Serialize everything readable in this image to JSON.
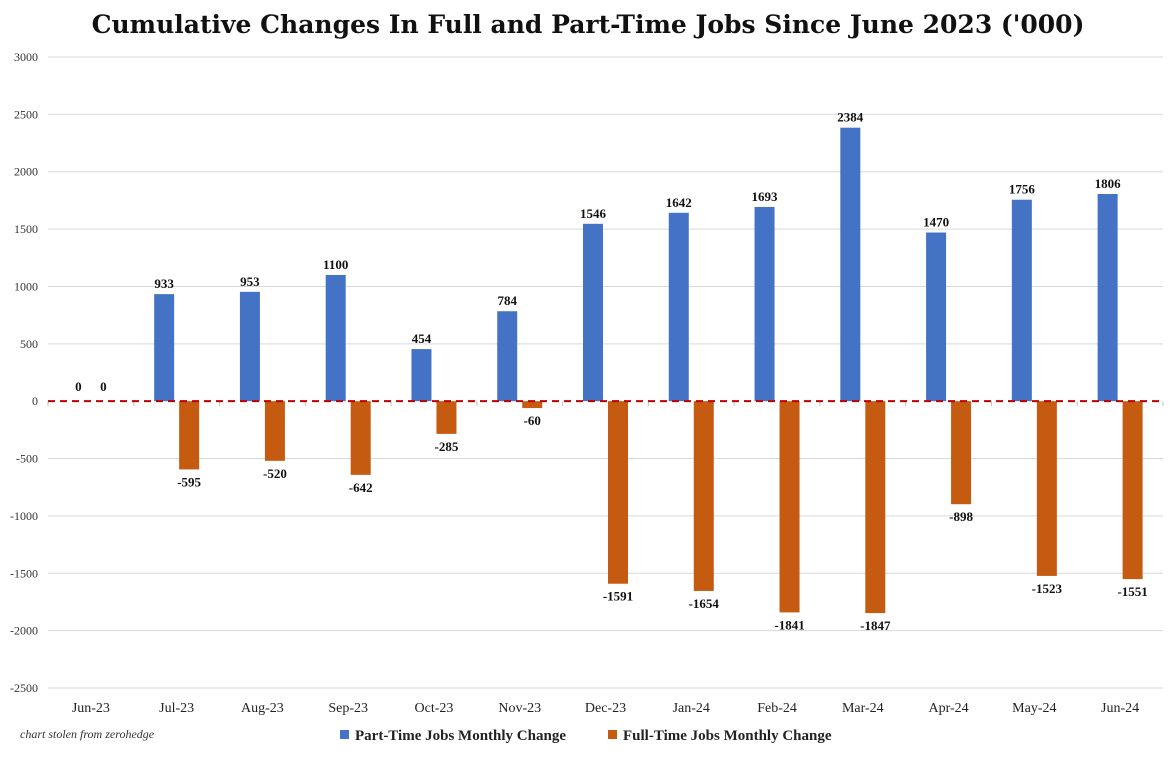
{
  "chart_data": {
    "type": "bar",
    "title": "Cumulative Changes In Full and Part-Time Jobs Since June 2023 ('000)",
    "categories": [
      "Jun-23",
      "Jul-23",
      "Aug-23",
      "Sep-23",
      "Oct-23",
      "Nov-23",
      "Dec-23",
      "Jan-24",
      "Feb-24",
      "Mar-24",
      "Apr-24",
      "May-24",
      "Jun-24"
    ],
    "series": [
      {
        "name": "Part-Time Jobs Monthly Change",
        "color": "#4472C4",
        "values": [
          0,
          933,
          953,
          1100,
          454,
          784,
          1546,
          1642,
          1693,
          2384,
          1470,
          1756,
          1806
        ]
      },
      {
        "name": "Full-Time Jobs Monthly Change",
        "color": "#C55A11",
        "values": [
          0,
          -595,
          -520,
          -642,
          -285,
          -60,
          -1591,
          -1654,
          -1841,
          -1847,
          -898,
          -1523,
          -1551
        ]
      }
    ],
    "ylim": [
      -2500,
      3000
    ],
    "yticks": [
      -2500,
      -2000,
      -1500,
      -1000,
      -500,
      0,
      500,
      1000,
      1500,
      2000,
      2500,
      3000
    ],
    "zero_line_color": "#C00000",
    "grid": true,
    "legend_position": "bottom-center",
    "credit": "chart stolen from zerohedge"
  }
}
